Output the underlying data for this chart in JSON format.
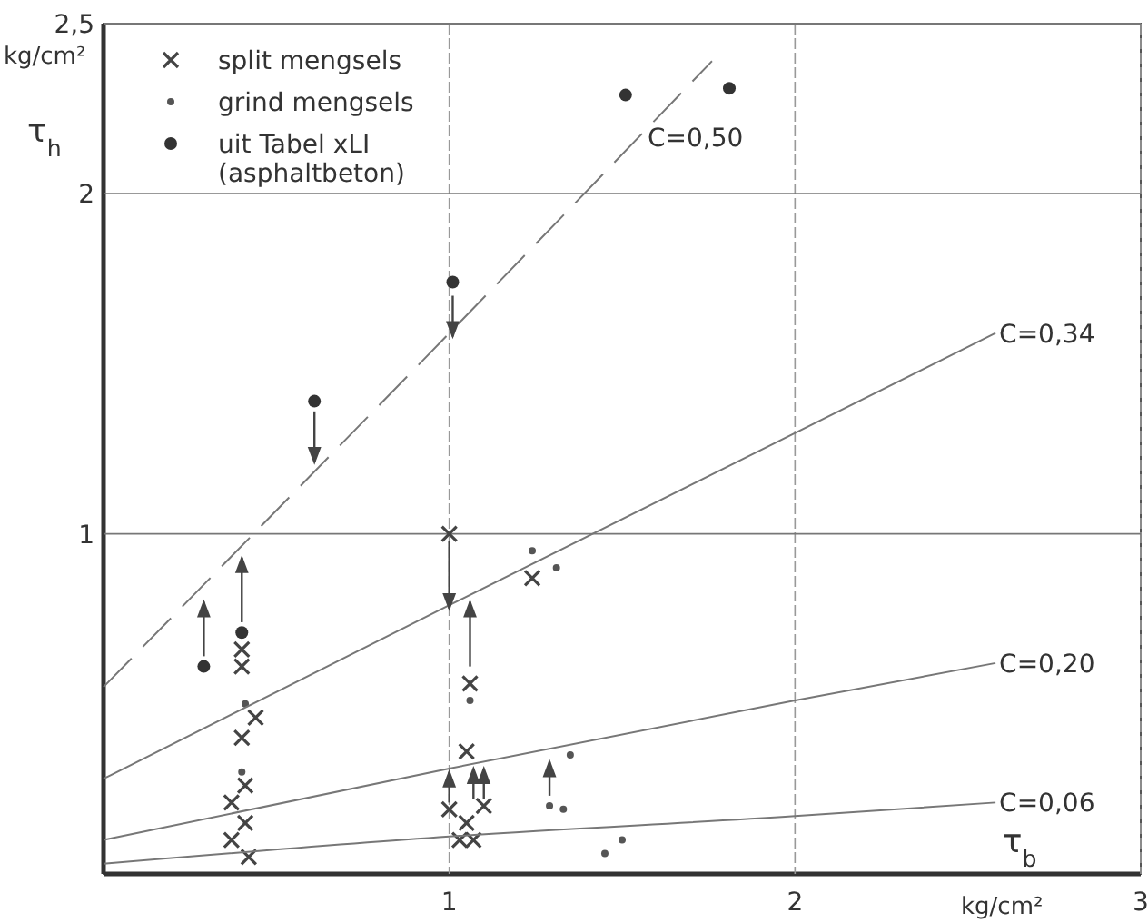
{
  "chart_data": {
    "type": "scatter",
    "xlabel": "τ$_{b}$",
    "ylabel": "τ$_{h}$",
    "annotations": [
      "kg/cm²",
      "kg/cm²"
    ],
    "xlim": [
      0,
      3
    ],
    "ylim": [
      0,
      2.5
    ],
    "xticks": [
      1,
      2,
      3
    ],
    "yticks": [
      1,
      2,
      {
        "value": 2.5,
        "label": "2,5"
      }
    ],
    "grid": true,
    "legend": "top left",
    "series": [
      {
        "name": "split mengsels",
        "marker": "cross",
        "color": "#444444",
        "x": [
          0.4,
          0.4,
          0.44,
          0.4,
          0.41,
          0.37,
          0.41,
          0.37,
          0.42,
          1.0,
          1.24,
          1.06,
          1.05,
          1.0,
          1.05,
          1.03,
          1.07,
          1.1
        ],
        "values": [
          0.66,
          0.61,
          0.46,
          0.4,
          0.26,
          0.21,
          0.15,
          0.1,
          0.05,
          1.0,
          0.87,
          0.56,
          0.36,
          0.19,
          0.15,
          0.1,
          0.1,
          0.2
        ]
      },
      {
        "name": "grind mengsels",
        "marker": "circle",
        "color": "#555555",
        "x": [
          1.24,
          1.31,
          0.41,
          0.4,
          1.06,
          1.35,
          1.29,
          1.33,
          1.45,
          1.5
        ],
        "values": [
          0.95,
          0.9,
          0.5,
          0.3,
          0.51,
          0.35,
          0.2,
          0.19,
          0.06,
          0.1
        ]
      },
      {
        "name": "uit Tabel xLI (asphaltbeton)",
        "marker": "circle",
        "color": "#333333",
        "x": [
          0.29,
          0.4,
          0.61,
          1.01,
          1.51,
          1.81
        ],
        "values": [
          0.61,
          0.71,
          1.39,
          1.74,
          2.29,
          2.31
        ]
      },
      {
        "name": "C=0,50",
        "type": "line",
        "line_style": "dashed",
        "color": "#777777",
        "x": [
          0,
          1,
          1.76
        ],
        "values": [
          0.55,
          1.59,
          2.39
        ]
      },
      {
        "name": "C=0,34",
        "type": "line",
        "line_style": "solid",
        "color": "#777777",
        "x": [
          0,
          1,
          2.58
        ],
        "values": [
          0.28,
          0.79,
          1.59
        ]
      },
      {
        "name": "C=0,20",
        "type": "line",
        "line_style": "solid",
        "color": "#777777",
        "x": [
          0,
          1,
          2,
          2.58
        ],
        "values": [
          0.1,
          0.31,
          0.51,
          0.62
        ]
      },
      {
        "name": "C=0,06",
        "type": "line",
        "line_style": "solid",
        "color": "#777777",
        "x": [
          0,
          1,
          2,
          2.58
        ],
        "values": [
          0.03,
          0.11,
          0.17,
          0.21
        ]
      }
    ]
  }
}
